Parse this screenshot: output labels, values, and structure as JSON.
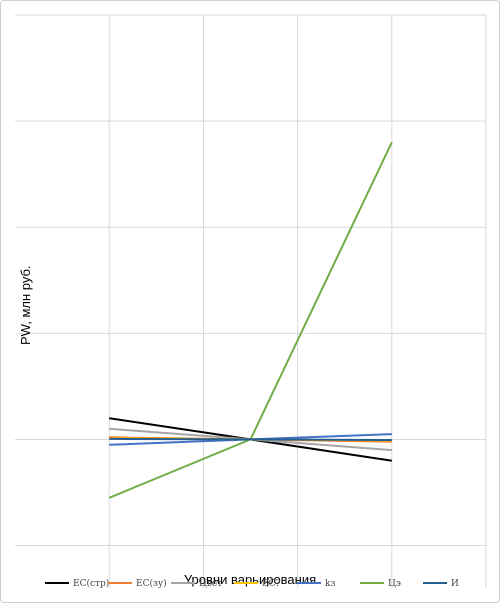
{
  "chart_data": {
    "type": "line",
    "title": "",
    "xlabel": "Уровни варьирования",
    "ylabel": "PW, млн руб.",
    "xlim": [
      -0.25,
      0.25
    ],
    "ylim": [
      -40,
      500
    ],
    "grid": true,
    "legend_position": "bottom",
    "series": [
      {
        "name": "EC(стр)",
        "color": "#000000",
        "x": [
          -0.15,
          0.0,
          0.15
        ],
        "y": [
          120,
          100,
          80
        ]
      },
      {
        "name": "EC(зу)",
        "color": "#ED7D31",
        "x": [
          -0.15,
          0.0,
          0.15
        ],
        "y": [
          102,
          100,
          98
        ]
      },
      {
        "name": "Цвет",
        "color": "#A5A5A5",
        "x": [
          -0.15,
          0.0,
          0.15
        ],
        "y": [
          110,
          100,
          90
        ]
      },
      {
        "name": "EC?",
        "color": "#FFC000",
        "x": [
          -0.15,
          0.0,
          0.15
        ],
        "y": [
          101,
          100,
          99
        ]
      },
      {
        "name": "kз",
        "color": "#4472C4",
        "x": [
          -0.15,
          0.0,
          0.15
        ],
        "y": [
          95,
          100,
          105
        ]
      },
      {
        "name": "Цэ",
        "color": "#70AD47",
        "x": [
          -0.15,
          0.0,
          0.15
        ],
        "y": [
          45,
          100,
          380
        ]
      },
      {
        "name": "И",
        "color": "#255E91",
        "x": [
          -0.15,
          0.0,
          0.15
        ],
        "y": [
          100.5,
          100,
          99.5
        ]
      }
    ]
  }
}
